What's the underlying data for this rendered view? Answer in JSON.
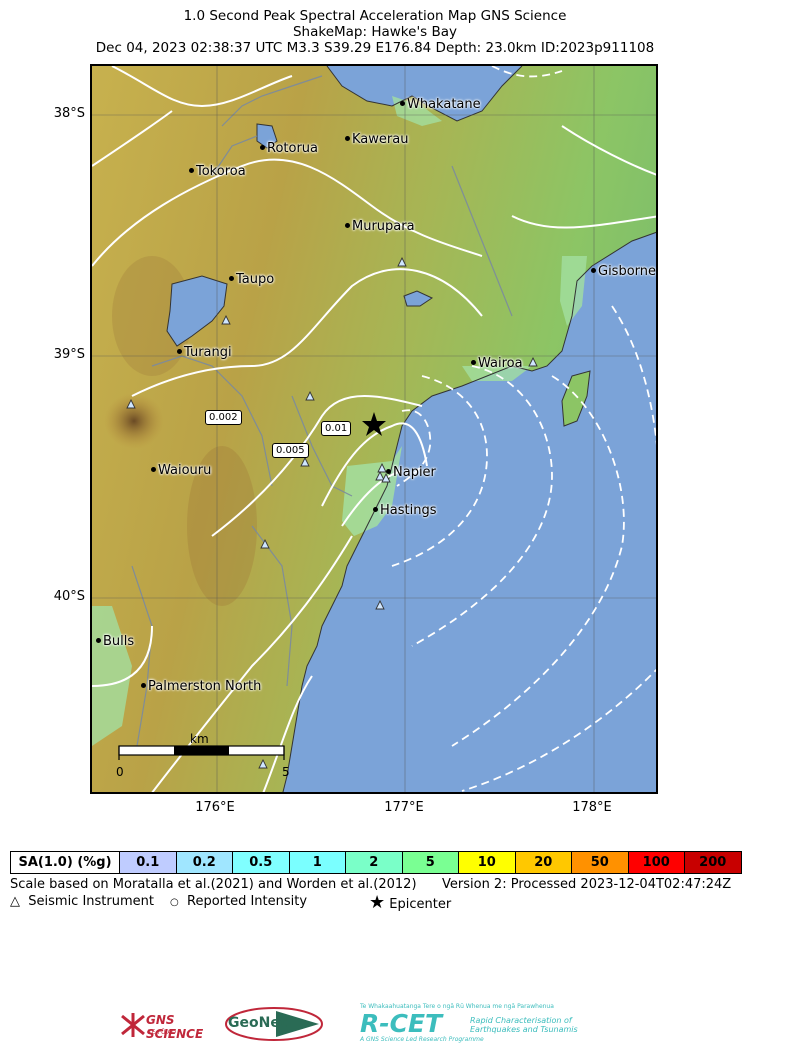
{
  "title": {
    "line1": "1.0 Second Peak Spectral Acceleration Map GNS Science",
    "line2": "ShakeMap: Hawke's Bay",
    "line3": "Dec 04, 2023 02:38:37 UTC M3.3 S39.29 E176.84 Depth: 23.0km ID:2023p911108"
  },
  "axes": {
    "lat_labels": [
      "38°S",
      "39°S",
      "40°S"
    ],
    "lon_labels": [
      "176°E",
      "177°E",
      "178°E"
    ]
  },
  "places": [
    {
      "name": "Whakatane"
    },
    {
      "name": "Kawerau"
    },
    {
      "name": "Rotorua"
    },
    {
      "name": "Tokoroa"
    },
    {
      "name": "Murupara"
    },
    {
      "name": "Taupo"
    },
    {
      "name": "Gisborne"
    },
    {
      "name": "Turangi"
    },
    {
      "name": "Wairoa"
    },
    {
      "name": "Waiouru"
    },
    {
      "name": "Napier"
    },
    {
      "name": "Hastings"
    },
    {
      "name": "Bulls"
    },
    {
      "name": "Palmerston North"
    }
  ],
  "contour_labels": [
    "0.002",
    "0.01",
    "0.005"
  ],
  "scale_bar": {
    "unit": "km",
    "start": "0",
    "end": "5"
  },
  "legend": {
    "header": "SA(1.0) (%g)",
    "bins": [
      {
        "label": "0.1",
        "color": "#bfccff"
      },
      {
        "label": "0.2",
        "color": "#a0e6ff"
      },
      {
        "label": "0.5",
        "color": "#80ffff"
      },
      {
        "label": "1",
        "color": "#7affff"
      },
      {
        "label": "2",
        "color": "#7affc8"
      },
      {
        "label": "5",
        "color": "#7aff93"
      },
      {
        "label": "10",
        "color": "#ffff00"
      },
      {
        "label": "20",
        "color": "#ffc800"
      },
      {
        "label": "50",
        "color": "#ff9100"
      },
      {
        "label": "100",
        "color": "#ff0000"
      },
      {
        "label": "200",
        "color": "#c80000"
      }
    ]
  },
  "notes": {
    "scale_note": "Scale based on Moratalla et al.(2021) and Worden et al.(2012)",
    "version": "Version 2: Processed 2023-12-04T02:47:24Z",
    "legend_instrument": "Seismic Instrument",
    "legend_intensity": "Reported Intensity",
    "legend_epicenter": "Epicenter"
  },
  "logos": {
    "gns": "GNS SCIENCE",
    "gns_sub": "TE PŪ AO",
    "geonet": "GeoNet",
    "rcet": "R-CET",
    "rcet_tagline": "Te Whakaahuatanga Tere o ngā Rū Whenua me ngā Parawhenua",
    "rcet_desc1": "Rapid Characterisation of",
    "rcet_desc2": "Earthquakes and Tsunamis",
    "rcet_footer": "A GNS Science Led Research Programme"
  },
  "colors": {
    "sea": "#7ba3d8",
    "land_low": "#9fdc9c",
    "land_mid": "#d8c25c",
    "land_high": "#b88a3c",
    "contour": "#ffffff",
    "river": "#7a8aa0",
    "rcet": "#3cbdbd",
    "gns_red": "#c0273a",
    "geonet_green": "#2a6b55"
  }
}
